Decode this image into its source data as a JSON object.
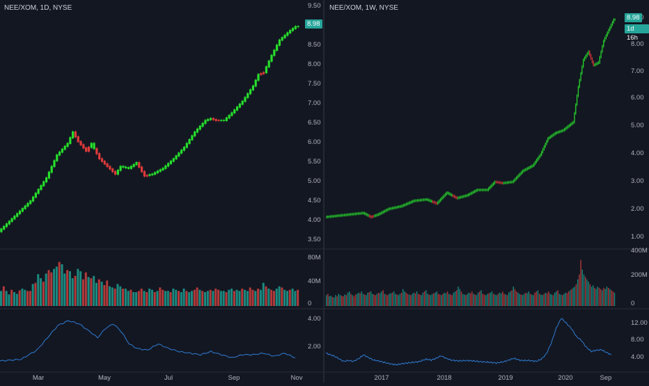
{
  "chart_data": [
    {
      "type": "candlestick",
      "symbol": "NEE/XOM, 1D, NYSE",
      "price_axis": {
        "ticks": [
          "9.50",
          "9.00",
          "8.50",
          "8.00",
          "7.50",
          "7.00",
          "6.50",
          "6.00",
          "5.50",
          "5.00",
          "4.50",
          "4.00",
          "3.50"
        ],
        "range": [
          3.2,
          9.5
        ]
      },
      "last_price_label": "8.98",
      "x_ticks": [
        "Mar",
        "May",
        "Jul",
        "Sep",
        "Nov"
      ],
      "price_path": [
        [
          0,
          3.6
        ],
        [
          6,
          4.0
        ],
        [
          12,
          4.4
        ],
        [
          18,
          5.0
        ],
        [
          22,
          5.6
        ],
        [
          26,
          5.9
        ],
        [
          28,
          6.2
        ],
        [
          30,
          5.95
        ],
        [
          33,
          5.7
        ],
        [
          35,
          5.9
        ],
        [
          38,
          5.5
        ],
        [
          41,
          5.3
        ],
        [
          44,
          5.1
        ],
        [
          46,
          5.3
        ],
        [
          49,
          5.25
        ],
        [
          52,
          5.4
        ],
        [
          55,
          5.05
        ],
        [
          58,
          5.1
        ],
        [
          62,
          5.25
        ],
        [
          66,
          5.5
        ],
        [
          70,
          5.8
        ],
        [
          74,
          6.2
        ],
        [
          78,
          6.5
        ],
        [
          80,
          6.55
        ],
        [
          82,
          6.5
        ],
        [
          85,
          6.5
        ],
        [
          88,
          6.7
        ],
        [
          92,
          7.0
        ],
        [
          96,
          7.4
        ],
        [
          98,
          7.7
        ],
        [
          100,
          7.75
        ],
        [
          103,
          8.2
        ],
        [
          106,
          8.6
        ],
        [
          110,
          8.85
        ],
        [
          112,
          8.95
        ]
      ],
      "bearish_ranges": [
        [
          28,
          34
        ],
        [
          36,
          44
        ],
        [
          52,
          56
        ],
        [
          80,
          83
        ],
        [
          98,
          100
        ]
      ],
      "volume": {
        "axis_ticks": [
          "80M",
          "40M",
          "0"
        ],
        "max": 90,
        "values": [
          26,
          34,
          26,
          20,
          28,
          24,
          21,
          27,
          30,
          28,
          26,
          26,
          38,
          40,
          55,
          48,
          42,
          56,
          62,
          58,
          64,
          68,
          76,
          72,
          56,
          62,
          60,
          48,
          52,
          64,
          60,
          46,
          58,
          50,
          48,
          52,
          40,
          46,
          42,
          36,
          44,
          34,
          32,
          30,
          38,
          34,
          30,
          30,
          26,
          28,
          24,
          24,
          26,
          30,
          26,
          24,
          30,
          28,
          24,
          26,
          32,
          28,
          26,
          26,
          24,
          30,
          28,
          26,
          24,
          30,
          26,
          24,
          26,
          28,
          32,
          28,
          26,
          24,
          26,
          28,
          26,
          30,
          28,
          26,
          26,
          24,
          28,
          30,
          26,
          28,
          26,
          30,
          28,
          26,
          32,
          28,
          26,
          30,
          28,
          40,
          34,
          30,
          28,
          26,
          30,
          34,
          32,
          28,
          26,
          28,
          30,
          26,
          28
        ]
      },
      "indicator": {
        "axis_ticks": [
          "4.00",
          "2.00"
        ],
        "range": [
          1.0,
          4.6
        ],
        "path": [
          [
            0,
            1.5
          ],
          [
            8,
            1.6
          ],
          [
            14,
            2.2
          ],
          [
            18,
            3.0
          ],
          [
            22,
            3.8
          ],
          [
            26,
            4.1
          ],
          [
            30,
            3.9
          ],
          [
            34,
            3.4
          ],
          [
            37,
            3.0
          ],
          [
            40,
            3.6
          ],
          [
            43,
            3.9
          ],
          [
            46,
            3.4
          ],
          [
            49,
            2.6
          ],
          [
            52,
            2.3
          ],
          [
            56,
            2.2
          ],
          [
            60,
            2.6
          ],
          [
            64,
            2.3
          ],
          [
            68,
            2.1
          ],
          [
            72,
            2.0
          ],
          [
            76,
            1.9
          ],
          [
            80,
            2.1
          ],
          [
            84,
            1.9
          ],
          [
            88,
            1.7
          ],
          [
            92,
            1.9
          ],
          [
            96,
            1.9
          ],
          [
            100,
            2.0
          ],
          [
            104,
            1.8
          ],
          [
            108,
            2.0
          ],
          [
            112,
            1.7
          ]
        ]
      }
    },
    {
      "type": "candlestick",
      "symbol": "NEE/XOM, 1W, NYSE",
      "price_axis": {
        "ticks": [
          "9.00",
          "8.00",
          "7.00",
          "6.00",
          "5.00",
          "4.00",
          "3.00",
          "2.00",
          "1.00"
        ],
        "range": [
          0.6,
          9.5
        ]
      },
      "last_price_label": "8.98",
      "countdown_label": "1d 16h",
      "x_ticks": [
        "2017",
        "2018",
        "2019",
        "2020",
        "Sep"
      ],
      "price_path": [
        [
          0,
          1.7
        ],
        [
          10,
          1.75
        ],
        [
          20,
          1.8
        ],
        [
          30,
          1.85
        ],
        [
          36,
          1.7
        ],
        [
          42,
          1.8
        ],
        [
          50,
          2.0
        ],
        [
          60,
          2.1
        ],
        [
          70,
          2.3
        ],
        [
          80,
          2.35
        ],
        [
          88,
          2.2
        ],
        [
          96,
          2.6
        ],
        [
          104,
          2.4
        ],
        [
          112,
          2.5
        ],
        [
          120,
          2.7
        ],
        [
          128,
          2.7
        ],
        [
          134,
          3.0
        ],
        [
          140,
          2.95
        ],
        [
          148,
          3.0
        ],
        [
          156,
          3.4
        ],
        [
          164,
          3.6
        ],
        [
          170,
          4.0
        ],
        [
          176,
          4.6
        ],
        [
          182,
          4.8
        ],
        [
          188,
          4.9
        ],
        [
          196,
          5.2
        ],
        [
          200,
          6.5
        ],
        [
          204,
          7.5
        ],
        [
          208,
          7.8
        ],
        [
          212,
          7.3
        ],
        [
          216,
          7.4
        ],
        [
          220,
          8.2
        ],
        [
          224,
          8.6
        ],
        [
          228,
          8.98
        ]
      ],
      "bearish_ranges": [
        [
          34,
          38
        ],
        [
          84,
          88
        ],
        [
          100,
          104
        ],
        [
          134,
          140
        ],
        [
          208,
          212
        ]
      ],
      "volume": {
        "axis_ticks": [
          "400M",
          "200M",
          "0"
        ],
        "max": 430,
        "values": [
          90,
          100,
          80,
          85,
          75,
          70,
          90,
          80,
          100,
          90,
          85,
          80,
          95,
          90,
          110,
          120,
          100,
          90,
          80,
          95,
          100,
          110,
          105,
          120,
          100,
          95,
          90,
          110,
          115,
          120,
          100,
          95,
          90,
          100,
          110,
          105,
          120,
          130,
          100,
          95,
          90,
          100,
          105,
          110,
          120,
          100,
          95,
          90,
          100,
          110,
          140,
          120,
          110,
          100,
          95,
          90,
          100,
          110,
          105,
          120,
          100,
          95,
          90,
          110,
          120,
          130,
          100,
          95,
          90,
          100,
          105,
          110,
          120,
          100,
          95,
          90,
          100,
          110,
          105,
          120,
          100,
          95,
          90,
          110,
          120,
          130,
          160,
          140,
          120,
          100,
          95,
          90,
          100,
          110,
          105,
          120,
          100,
          95,
          90,
          110,
          120,
          130,
          100,
          95,
          90,
          100,
          105,
          110,
          120,
          100,
          95,
          90,
          100,
          110,
          105,
          120,
          100,
          95,
          90,
          110,
          120,
          130,
          160,
          140,
          120,
          110,
          100,
          95,
          90,
          100,
          110,
          105,
          120,
          100,
          95,
          90,
          110,
          120,
          130,
          100,
          95,
          90,
          100,
          110,
          105,
          120,
          100,
          95,
          90,
          110,
          120,
          130,
          100,
          95,
          90,
          100,
          110,
          105,
          120,
          130,
          140,
          150,
          160,
          180,
          220,
          260,
          380,
          300,
          260,
          240,
          220,
          200,
          180,
          160,
          170,
          150,
          140,
          160,
          150,
          140,
          130,
          150,
          140,
          160,
          150,
          140,
          130,
          120,
          110
        ]
      },
      "indicator": {
        "axis_ticks": [
          "12.00",
          "8.00",
          "4.00"
        ],
        "range": [
          2.0,
          15.0
        ],
        "path": [
          [
            0,
            5.6
          ],
          [
            6,
            5.0
          ],
          [
            10,
            4.4
          ],
          [
            14,
            3.7
          ],
          [
            18,
            3.9
          ],
          [
            22,
            3.7
          ],
          [
            26,
            4.3
          ],
          [
            30,
            5.2
          ],
          [
            34,
            4.6
          ],
          [
            38,
            4.0
          ],
          [
            42,
            3.8
          ],
          [
            46,
            3.5
          ],
          [
            50,
            3.2
          ],
          [
            56,
            2.9
          ],
          [
            62,
            3.2
          ],
          [
            68,
            3.4
          ],
          [
            74,
            3.6
          ],
          [
            80,
            4.2
          ],
          [
            84,
            4.0
          ],
          [
            88,
            4.4
          ],
          [
            92,
            5.0
          ],
          [
            96,
            4.4
          ],
          [
            100,
            4.0
          ],
          [
            106,
            3.8
          ],
          [
            112,
            3.9
          ],
          [
            118,
            3.8
          ],
          [
            124,
            3.6
          ],
          [
            130,
            3.5
          ],
          [
            136,
            3.3
          ],
          [
            142,
            3.6
          ],
          [
            146,
            4.0
          ],
          [
            150,
            4.4
          ],
          [
            156,
            3.9
          ],
          [
            162,
            3.9
          ],
          [
            168,
            3.7
          ],
          [
            172,
            4.2
          ],
          [
            176,
            5.4
          ],
          [
            180,
            8.0
          ],
          [
            184,
            11.5
          ],
          [
            188,
            13.8
          ],
          [
            192,
            12.6
          ],
          [
            196,
            11.4
          ],
          [
            200,
            9.5
          ],
          [
            204,
            8.6
          ],
          [
            208,
            7.0
          ],
          [
            212,
            6.0
          ],
          [
            216,
            6.3
          ],
          [
            220,
            6.4
          ],
          [
            224,
            5.8
          ],
          [
            228,
            5.2
          ]
        ]
      }
    }
  ]
}
